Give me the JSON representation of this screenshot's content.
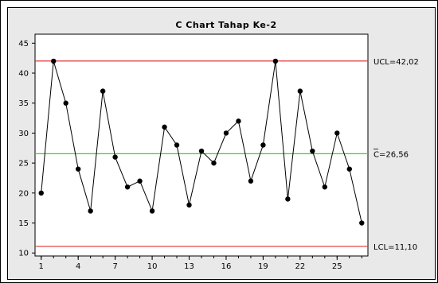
{
  "chart_data": {
    "type": "line",
    "title": "C Chart Tahap Ke-2",
    "xlabel": "",
    "ylabel": "",
    "x_ticks": [
      "1",
      "4",
      "7",
      "10",
      "13",
      "16",
      "19",
      "22",
      "25"
    ],
    "y_ticks": [
      "10",
      "15",
      "20",
      "25",
      "30",
      "35",
      "40",
      "45"
    ],
    "xlim": [
      0.5,
      27.5
    ],
    "ylim": [
      9.5,
      46.5
    ],
    "series": [
      {
        "x": [
          1,
          2,
          3,
          4,
          5,
          6,
          7,
          8,
          9,
          10,
          11,
          12,
          13,
          14,
          15,
          16,
          17,
          18,
          19,
          20,
          21,
          22,
          23,
          24,
          25,
          26,
          27
        ],
        "values": [
          20,
          42,
          35,
          24,
          17,
          37,
          26,
          21,
          22,
          17,
          31,
          28,
          18,
          27,
          25,
          30,
          32,
          22,
          28,
          42,
          19,
          37,
          27,
          21,
          30,
          24,
          15
        ]
      }
    ],
    "limits": {
      "ucl": {
        "value": 42.02,
        "label": "UCL=42,02",
        "color": "#e03030"
      },
      "center": {
        "value": 26.56,
        "label": "C=26,56",
        "color": "#22dd22"
      },
      "lcl": {
        "value": 11.1,
        "label": "LCL=11,10",
        "color": "#e03030"
      }
    },
    "grid": false,
    "legend": "none"
  }
}
